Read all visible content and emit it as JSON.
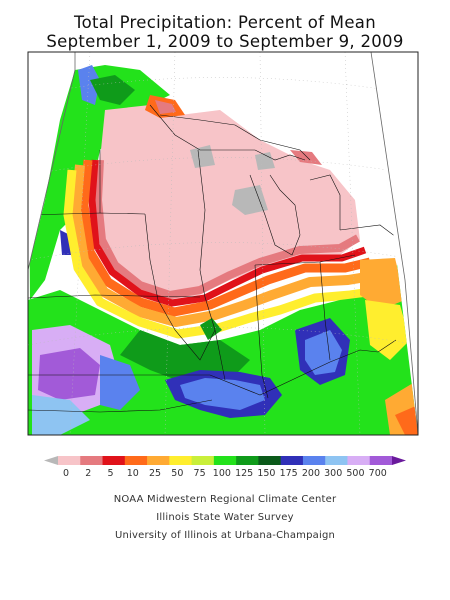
{
  "title": {
    "line1": "Total Precipitation: Percent of Mean",
    "line2": "September 1, 2009 to September 9, 2009"
  },
  "legend": {
    "labels": [
      "0",
      "2",
      "5",
      "10",
      "25",
      "50",
      "75",
      "100",
      "125",
      "150",
      "175",
      "200",
      "300",
      "500",
      "700"
    ],
    "colors": [
      "#b8b8b8",
      "#f7c4c8",
      "#e57a7f",
      "#e0121a",
      "#ff6a1a",
      "#ffaa33",
      "#ffee2e",
      "#c9ef3a",
      "#23e21b",
      "#0f9b1a",
      "#0b5a1a",
      "#3030b8",
      "#5a82ee",
      "#8ec4f2",
      "#d8aef5",
      "#a25ad8",
      "#6a1a9c"
    ]
  },
  "credits": {
    "line1": "NOAA Midwestern Regional Climate Center",
    "line2": "Illinois State Water Survey",
    "line3": "University of Illinois at Urbana-Champaign"
  }
}
